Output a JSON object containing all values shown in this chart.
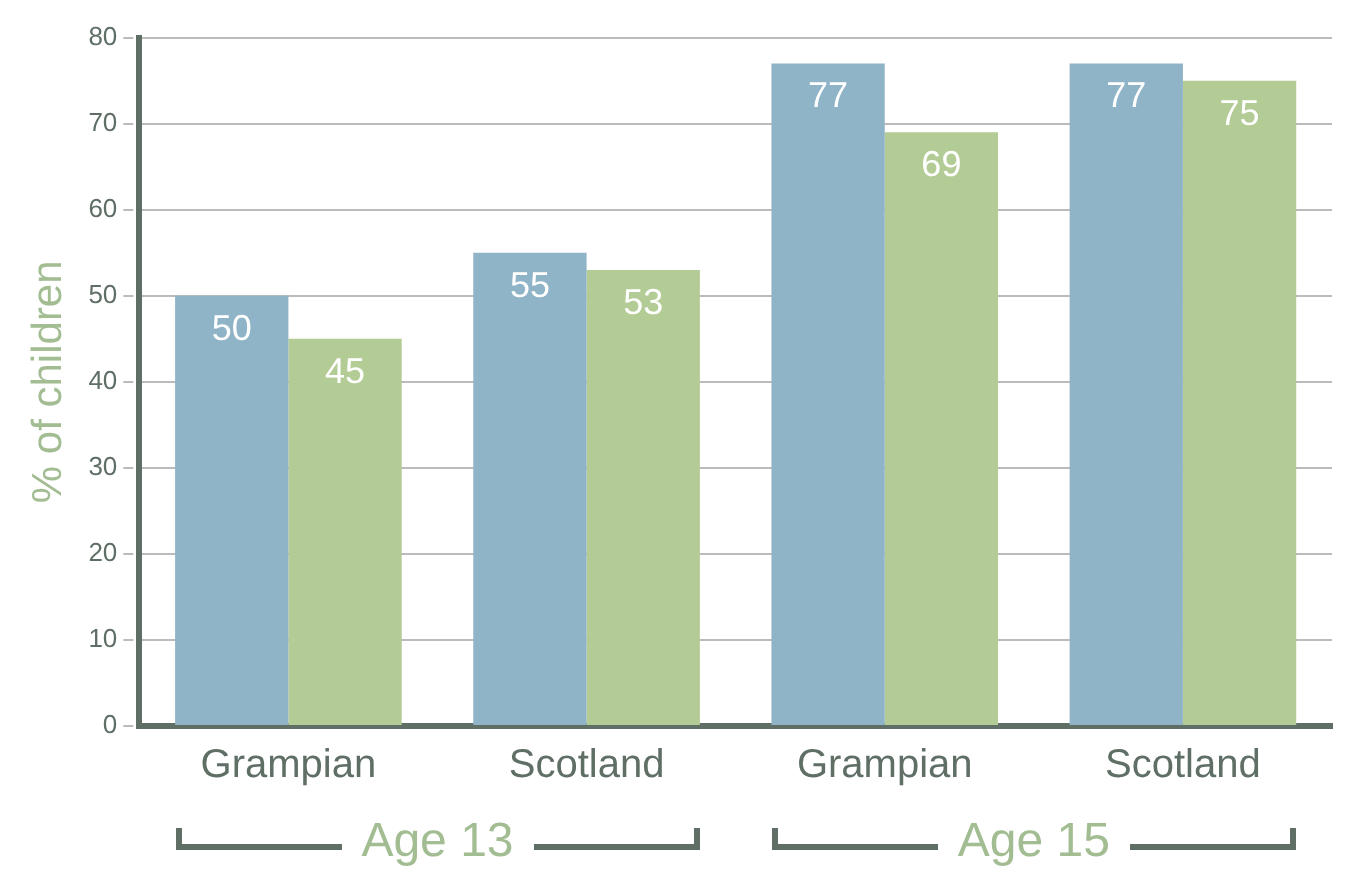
{
  "chart_data": {
    "type": "bar",
    "ylabel": "% of children",
    "categories": [
      "Grampian",
      "Scotland",
      "Grampian",
      "Scotland"
    ],
    "series": [
      {
        "color": "#8fb3c7",
        "values": [
          50,
          55,
          77,
          77
        ]
      },
      {
        "color": "#b3cb95",
        "values": [
          45,
          53,
          69,
          75
        ]
      }
    ],
    "ylim": [
      0,
      80
    ],
    "yticks": [
      0,
      10,
      20,
      30,
      40,
      50,
      60,
      70,
      80
    ],
    "grid": "y",
    "data_labels": true,
    "legend": false,
    "annotations": [
      "Age 13",
      "Age 15"
    ]
  }
}
